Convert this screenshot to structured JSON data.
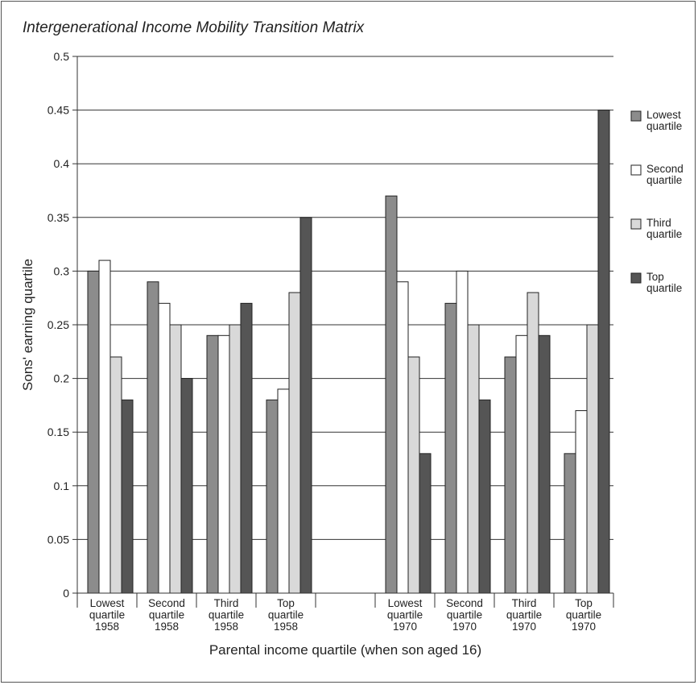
{
  "chart_data": {
    "type": "bar",
    "title": "Intergenerational Income Mobility Transition Matrix",
    "xlabel": "Parental income quartile (when son aged 16)",
    "ylabel": "Sons' earning quartile",
    "ylim": [
      0,
      0.5
    ],
    "yticks": [
      "0",
      "0.05",
      "0.1",
      "0.15",
      "0.2",
      "0.25",
      "0.3",
      "0.35",
      "0.4",
      "0.45",
      "0.5"
    ],
    "grid": true,
    "legend_position": "right",
    "categories": [
      [
        "Lowest",
        "quartile",
        "1958"
      ],
      [
        "Second",
        "quartile",
        "1958"
      ],
      [
        "Third",
        "quartile",
        "1958"
      ],
      [
        "Top",
        "quartile",
        "1958"
      ],
      [],
      [
        "Lowest",
        "quartile",
        "1970"
      ],
      [
        "Second",
        "quartile",
        "1970"
      ],
      [
        "Third",
        "quartile",
        "1970"
      ],
      [
        "Top",
        "quartile",
        "1970"
      ]
    ],
    "series": [
      {
        "name": [
          "Lowest",
          "quartile"
        ],
        "color": "#8c8c8c",
        "values": [
          0.3,
          0.29,
          0.24,
          0.18,
          null,
          0.37,
          0.27,
          0.22,
          0.13
        ]
      },
      {
        "name": [
          "Second",
          "quartile"
        ],
        "color": "#ffffff",
        "values": [
          0.31,
          0.27,
          0.24,
          0.19,
          null,
          0.29,
          0.3,
          0.24,
          0.17
        ]
      },
      {
        "name": [
          "Third",
          "quartile"
        ],
        "color": "#d9d9d9",
        "values": [
          0.22,
          0.25,
          0.25,
          0.28,
          null,
          0.22,
          0.25,
          0.28,
          0.25
        ]
      },
      {
        "name": [
          "Top",
          "quartile"
        ],
        "color": "#555555",
        "values": [
          0.18,
          0.2,
          0.27,
          0.35,
          null,
          0.13,
          0.18,
          0.24,
          0.45
        ]
      }
    ]
  }
}
